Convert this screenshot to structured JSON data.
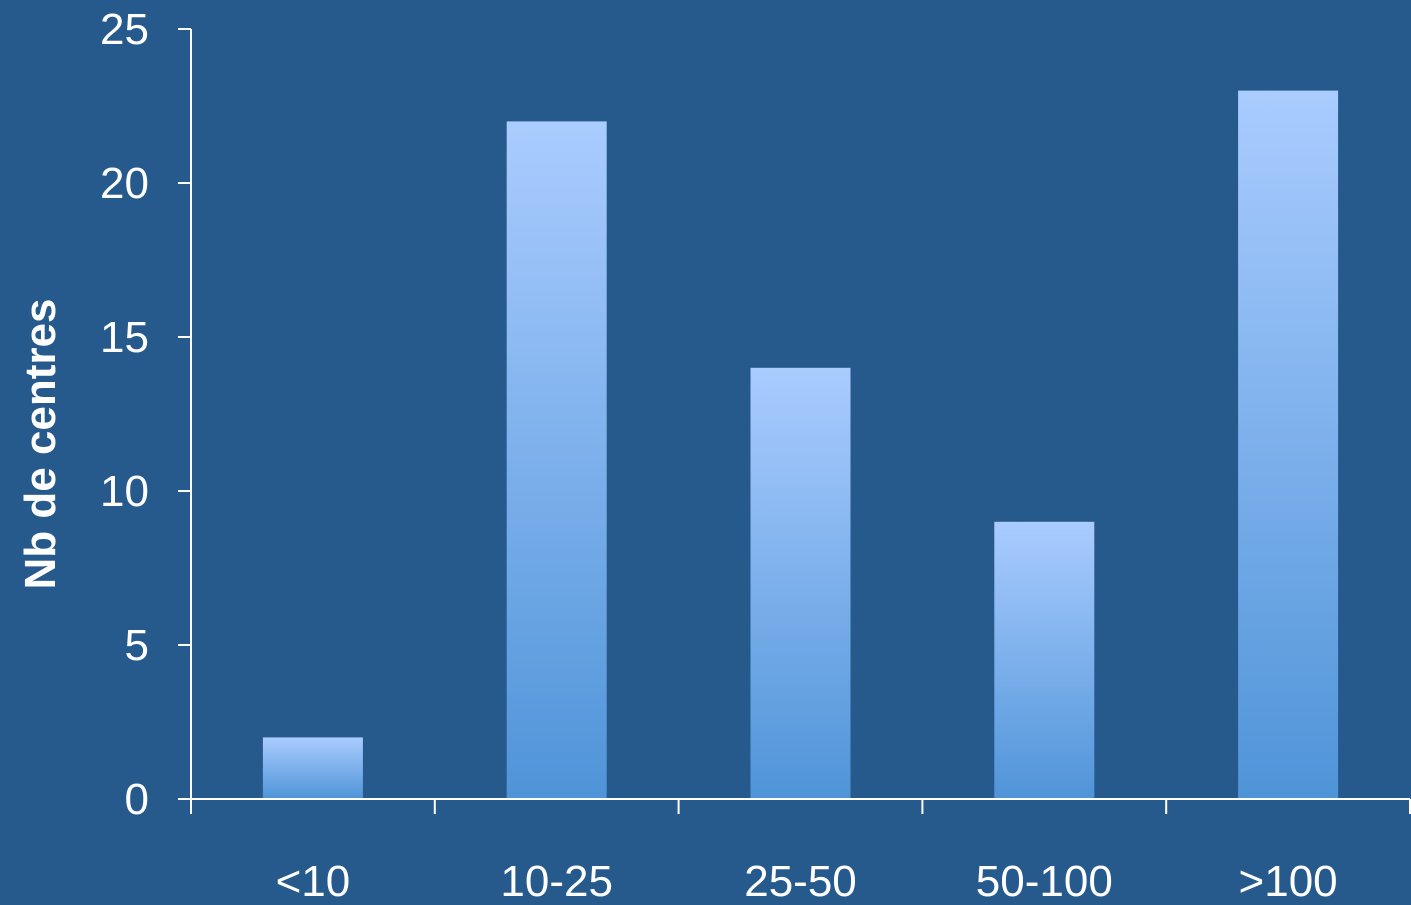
{
  "chart_data": {
    "type": "bar",
    "title": "",
    "xlabel": "",
    "ylabel": "Nb de centres",
    "categories": [
      "<10",
      "10-25",
      "25-50",
      "50-100",
      ">100"
    ],
    "values": [
      2,
      22,
      14,
      9,
      23
    ],
    "ylim": [
      0,
      25
    ],
    "yticks": [
      0,
      5,
      10,
      15,
      20,
      25
    ],
    "grid": false,
    "legend": "none",
    "colors": {
      "background": "#275A8C",
      "bar_top": "#AACCFF",
      "bar_bottom": "#4F94D8",
      "text": "#FFFFFF",
      "axis": "#FFFFFF"
    }
  }
}
